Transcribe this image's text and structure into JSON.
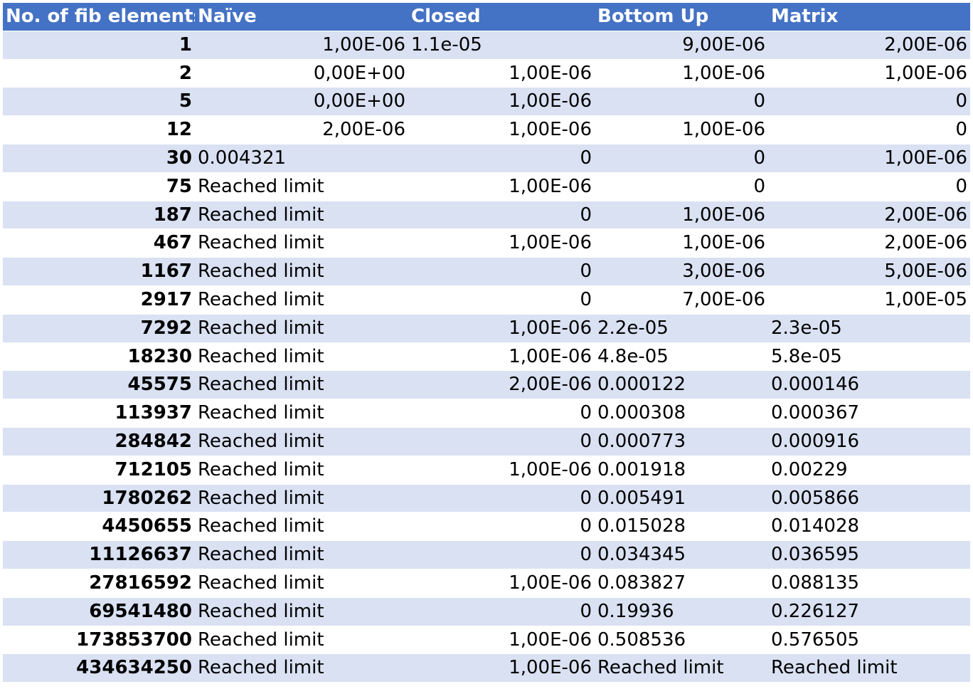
{
  "table": {
    "headers": [
      "No. of fib elements",
      "Naïve",
      "Closed",
      "Bottom Up",
      "Matrix"
    ],
    "rows": [
      [
        "1",
        "1,00E-06",
        "1.1e-05",
        "9,00E-06",
        "2,00E-06"
      ],
      [
        "2",
        "0,00E+00",
        "1,00E-06",
        "1,00E-06",
        "1,00E-06"
      ],
      [
        "5",
        "0,00E+00",
        "1,00E-06",
        "0",
        "0"
      ],
      [
        "12",
        "2,00E-06",
        "1,00E-06",
        "1,00E-06",
        "0"
      ],
      [
        "30",
        "0.004321",
        "0",
        "0",
        "1,00E-06"
      ],
      [
        "75",
        "Reached limit",
        "1,00E-06",
        "0",
        "0"
      ],
      [
        "187",
        "Reached limit",
        "0",
        "1,00E-06",
        "2,00E-06"
      ],
      [
        "467",
        "Reached limit",
        "1,00E-06",
        "1,00E-06",
        "2,00E-06"
      ],
      [
        "1167",
        "Reached limit",
        "0",
        "3,00E-06",
        "5,00E-06"
      ],
      [
        "2917",
        "Reached limit",
        "0",
        "7,00E-06",
        "1,00E-05"
      ],
      [
        "7292",
        "Reached limit",
        "1,00E-06",
        "2.2e-05",
        "2.3e-05"
      ],
      [
        "18230",
        "Reached limit",
        "1,00E-06",
        "4.8e-05",
        "5.8e-05"
      ],
      [
        "45575",
        "Reached limit",
        "2,00E-06",
        "0.000122",
        "0.000146"
      ],
      [
        "113937",
        "Reached limit",
        "0",
        "0.000308",
        "0.000367"
      ],
      [
        "284842",
        "Reached limit",
        "0",
        "0.000773",
        "0.000916"
      ],
      [
        "712105",
        "Reached limit",
        "1,00E-06",
        "0.001918",
        "0.00229"
      ],
      [
        "1780262",
        "Reached limit",
        "0",
        "0.005491",
        "0.005866"
      ],
      [
        "4450655",
        "Reached limit",
        "0",
        "0.015028",
        "0.014028"
      ],
      [
        "11126637",
        "Reached limit",
        "0",
        "0.034345",
        "0.036595"
      ],
      [
        "27816592",
        "Reached limit",
        "1,00E-06",
        "0.083827",
        "0.088135"
      ],
      [
        "69541480",
        "Reached limit",
        "0",
        "0.19936",
        "0.226127"
      ],
      [
        "173853700",
        "Reached limit",
        "1,00E-06",
        "0.508536",
        "0.576505"
      ],
      [
        "434634250",
        "Reached limit",
        "1,00E-06",
        "Reached limit",
        "Reached limit"
      ]
    ],
    "align": [
      [
        "r",
        "r",
        "l",
        "r",
        "r"
      ],
      [
        "r",
        "r",
        "r",
        "r",
        "r"
      ],
      [
        "r",
        "r",
        "r",
        "r",
        "r"
      ],
      [
        "r",
        "r",
        "r",
        "r",
        "r"
      ],
      [
        "r",
        "l",
        "r",
        "r",
        "r"
      ],
      [
        "r",
        "l",
        "r",
        "r",
        "r"
      ],
      [
        "r",
        "l",
        "r",
        "r",
        "r"
      ],
      [
        "r",
        "l",
        "r",
        "r",
        "r"
      ],
      [
        "r",
        "l",
        "r",
        "r",
        "r"
      ],
      [
        "r",
        "l",
        "r",
        "r",
        "r"
      ],
      [
        "r",
        "l",
        "r",
        "l",
        "l"
      ],
      [
        "r",
        "l",
        "r",
        "l",
        "l"
      ],
      [
        "r",
        "l",
        "r",
        "l",
        "l"
      ],
      [
        "r",
        "l",
        "r",
        "l",
        "l"
      ],
      [
        "r",
        "l",
        "r",
        "l",
        "l"
      ],
      [
        "r",
        "l",
        "r",
        "l",
        "l"
      ],
      [
        "r",
        "l",
        "r",
        "l",
        "l"
      ],
      [
        "r",
        "l",
        "r",
        "l",
        "l"
      ],
      [
        "r",
        "l",
        "r",
        "l",
        "l"
      ],
      [
        "r",
        "l",
        "r",
        "l",
        "l"
      ],
      [
        "r",
        "l",
        "r",
        "l",
        "l"
      ],
      [
        "r",
        "l",
        "r",
        "l",
        "l"
      ],
      [
        "r",
        "l",
        "r",
        "l",
        "l"
      ]
    ]
  },
  "colors": {
    "header_bg": "#4472c4",
    "band_bg": "#d9e1f2",
    "plain_bg": "#ffffff"
  }
}
